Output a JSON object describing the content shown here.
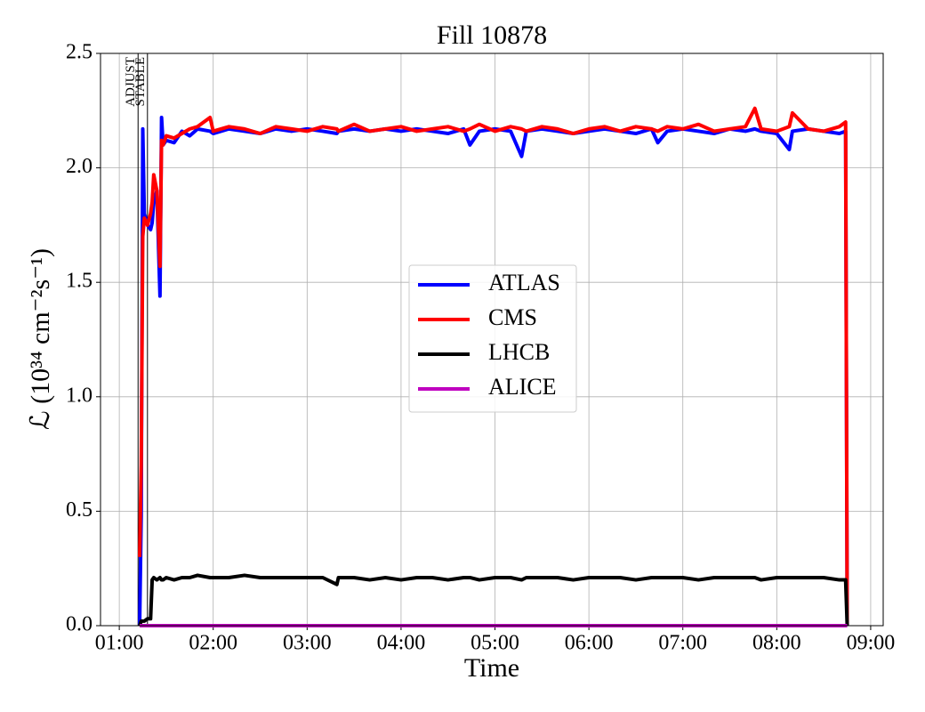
{
  "chart_data": {
    "type": "line",
    "title": "Fill 10878",
    "x_label": "Time",
    "y_label": "ℒ (10³⁴ cm⁻²s⁻¹)",
    "x": [
      "01:13",
      "01:14",
      "01:15",
      "01:16",
      "01:18",
      "01:20",
      "01:21",
      "01:22",
      "01:24",
      "01:26",
      "01:27",
      "01:28",
      "01:30",
      "01:35",
      "01:40",
      "01:45",
      "01:50",
      "01:58",
      "02:00",
      "02:10",
      "02:20",
      "02:30",
      "02:40",
      "02:50",
      "03:00",
      "03:10",
      "03:19",
      "03:20",
      "03:30",
      "03:40",
      "03:50",
      "04:00",
      "04:10",
      "04:20",
      "04:30",
      "04:40",
      "04:44",
      "04:50",
      "05:00",
      "05:10",
      "05:17",
      "05:20",
      "05:30",
      "05:40",
      "05:50",
      "06:00",
      "06:10",
      "06:20",
      "06:30",
      "06:40",
      "06:44",
      "06:50",
      "07:00",
      "07:10",
      "07:20",
      "07:30",
      "07:40",
      "07:46",
      "07:50",
      "08:00",
      "08:08",
      "08:10",
      "08:20",
      "08:30",
      "08:40",
      "08:44",
      "08:45"
    ],
    "series": [
      {
        "name": "ATLAS",
        "color": "#0000ff",
        "values": [
          0.0,
          0.48,
          2.17,
          1.8,
          1.75,
          1.73,
          1.76,
          1.85,
          1.9,
          1.44,
          2.22,
          2.1,
          2.12,
          2.11,
          2.16,
          2.14,
          2.17,
          2.16,
          2.15,
          2.17,
          2.16,
          2.15,
          2.17,
          2.16,
          2.17,
          2.16,
          2.15,
          2.16,
          2.17,
          2.16,
          2.17,
          2.16,
          2.17,
          2.16,
          2.15,
          2.17,
          2.1,
          2.16,
          2.17,
          2.16,
          2.05,
          2.16,
          2.17,
          2.16,
          2.15,
          2.16,
          2.17,
          2.16,
          2.15,
          2.17,
          2.11,
          2.16,
          2.17,
          2.16,
          2.15,
          2.17,
          2.16,
          2.17,
          2.16,
          2.15,
          2.08,
          2.16,
          2.17,
          2.16,
          2.15,
          2.16,
          0.0
        ]
      },
      {
        "name": "CMS",
        "color": "#ff0000",
        "values": [
          0.3,
          0.7,
          1.7,
          1.78,
          1.75,
          1.8,
          1.85,
          1.97,
          1.9,
          1.57,
          2.12,
          2.1,
          2.14,
          2.13,
          2.15,
          2.17,
          2.18,
          2.22,
          2.16,
          2.18,
          2.17,
          2.15,
          2.18,
          2.17,
          2.16,
          2.18,
          2.17,
          2.16,
          2.19,
          2.16,
          2.17,
          2.18,
          2.16,
          2.17,
          2.18,
          2.16,
          2.17,
          2.19,
          2.16,
          2.18,
          2.17,
          2.16,
          2.18,
          2.17,
          2.15,
          2.17,
          2.18,
          2.16,
          2.18,
          2.17,
          2.16,
          2.18,
          2.17,
          2.19,
          2.16,
          2.17,
          2.18,
          2.26,
          2.17,
          2.16,
          2.18,
          2.24,
          2.17,
          2.16,
          2.18,
          2.2,
          0.0
        ]
      },
      {
        "name": "LHCB",
        "color": "#000000",
        "values": [
          0.0,
          0.02,
          0.02,
          0.02,
          0.03,
          0.03,
          0.2,
          0.21,
          0.2,
          0.21,
          0.2,
          0.2,
          0.21,
          0.2,
          0.21,
          0.21,
          0.22,
          0.21,
          0.21,
          0.21,
          0.22,
          0.21,
          0.21,
          0.21,
          0.21,
          0.21,
          0.18,
          0.21,
          0.21,
          0.2,
          0.21,
          0.2,
          0.21,
          0.21,
          0.2,
          0.21,
          0.21,
          0.2,
          0.21,
          0.21,
          0.2,
          0.21,
          0.21,
          0.21,
          0.2,
          0.21,
          0.21,
          0.21,
          0.2,
          0.21,
          0.21,
          0.21,
          0.21,
          0.2,
          0.21,
          0.21,
          0.21,
          0.21,
          0.2,
          0.21,
          0.21,
          0.21,
          0.21,
          0.21,
          0.2,
          0.2,
          0.0
        ]
      },
      {
        "name": "ALICE",
        "color": "#bf00bf",
        "values": [
          0,
          0,
          0,
          0,
          0,
          0,
          0,
          0,
          0,
          0,
          0,
          0,
          0,
          0,
          0,
          0,
          0,
          0,
          0,
          0,
          0,
          0,
          0,
          0,
          0,
          0,
          0,
          0,
          0,
          0,
          0,
          0,
          0,
          0,
          0,
          0,
          0,
          0,
          0,
          0,
          0,
          0,
          0,
          0,
          0,
          0,
          0,
          0,
          0,
          0,
          0,
          0,
          0,
          0,
          0,
          0,
          0,
          0,
          0,
          0,
          0,
          0,
          0,
          0,
          0,
          0,
          0
        ]
      }
    ],
    "annotations": [
      {
        "label": "ADJUST",
        "x": "01:12"
      },
      {
        "label": "STABLE",
        "x": "01:18"
      }
    ],
    "xlim": [
      "00:48",
      "09:08"
    ],
    "xticks": [
      "01:00",
      "02:00",
      "03:00",
      "04:00",
      "05:00",
      "06:00",
      "07:00",
      "08:00",
      "09:00"
    ],
    "ylim": [
      0,
      2.5
    ],
    "yticks": [
      {
        "value": 0,
        "label": "0.0"
      },
      {
        "value": 0.5,
        "label": "0.5"
      },
      {
        "value": 1,
        "label": "1.0"
      },
      {
        "value": 1.5,
        "label": "1.5"
      },
      {
        "value": 2,
        "label": "2.0"
      },
      {
        "value": 2.5,
        "label": "2.5"
      }
    ],
    "grid": true,
    "legend_position": "center"
  }
}
